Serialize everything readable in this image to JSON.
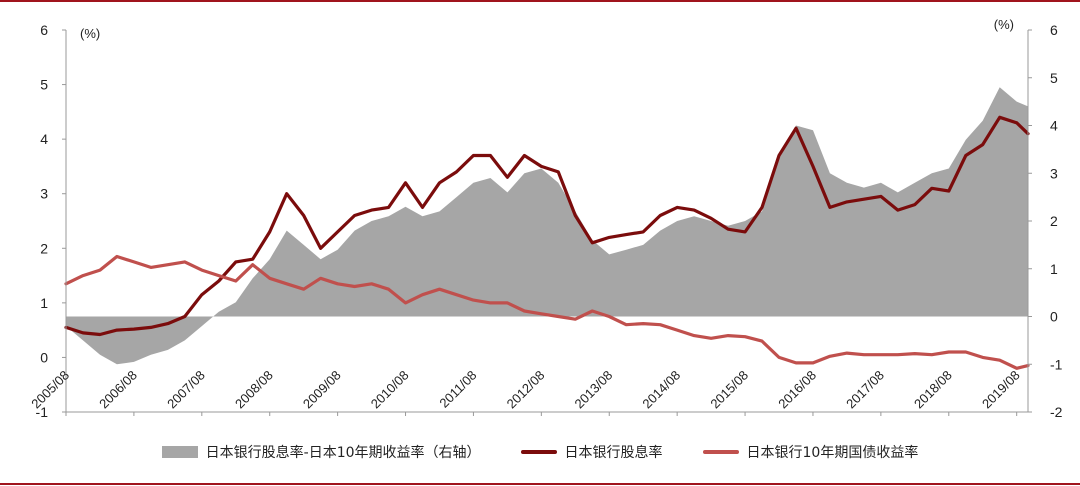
{
  "chart_data": {
    "type": "line",
    "left_axis": {
      "ticks": [
        "6",
        "5",
        "4",
        "3",
        "2",
        "1",
        "0",
        "-1"
      ],
      "range": [
        -1,
        6
      ],
      "unit": "(%)"
    },
    "right_axis": {
      "ticks": [
        "6",
        "5",
        "4",
        "3",
        "2",
        "1",
        "0",
        "-1",
        "-2"
      ],
      "range": [
        -2,
        6
      ],
      "unit": "(%)"
    },
    "x_ticks": [
      "2005/08",
      "2006/08",
      "2007/08",
      "2008/08",
      "2009/08",
      "2010/08",
      "2011/08",
      "2012/08",
      "2013/08",
      "2014/08",
      "2015/08",
      "2016/08",
      "2017/08",
      "2018/08",
      "2019/08"
    ],
    "x_range": [
      "2005/08",
      "2019/10"
    ],
    "series": [
      {
        "name": "日本银行股息率-日本10年期收益率（右轴）",
        "kind": "area",
        "axis": "right",
        "color": "#a6a6a6",
        "points": [
          [
            "2005/08",
            -0.2
          ],
          [
            "2005/11",
            -0.5
          ],
          [
            "2006/02",
            -0.8
          ],
          [
            "2006/05",
            -1.0
          ],
          [
            "2006/08",
            -0.95
          ],
          [
            "2006/11",
            -0.8
          ],
          [
            "2007/02",
            -0.7
          ],
          [
            "2007/05",
            -0.5
          ],
          [
            "2007/08",
            -0.2
          ],
          [
            "2007/11",
            0.1
          ],
          [
            "2008/02",
            0.3
          ],
          [
            "2008/05",
            0.8
          ],
          [
            "2008/08",
            1.2
          ],
          [
            "2008/11",
            1.8
          ],
          [
            "2009/02",
            1.5
          ],
          [
            "2009/05",
            1.2
          ],
          [
            "2009/08",
            1.4
          ],
          [
            "2009/11",
            1.8
          ],
          [
            "2010/02",
            2.0
          ],
          [
            "2010/05",
            2.1
          ],
          [
            "2010/08",
            2.3
          ],
          [
            "2010/11",
            2.1
          ],
          [
            "2011/02",
            2.2
          ],
          [
            "2011/05",
            2.5
          ],
          [
            "2011/08",
            2.8
          ],
          [
            "2011/11",
            2.9
          ],
          [
            "2012/02",
            2.6
          ],
          [
            "2012/05",
            3.0
          ],
          [
            "2012/08",
            3.1
          ],
          [
            "2012/11",
            2.8
          ],
          [
            "2013/02",
            2.2
          ],
          [
            "2013/05",
            1.6
          ],
          [
            "2013/08",
            1.3
          ],
          [
            "2013/11",
            1.4
          ],
          [
            "2014/02",
            1.5
          ],
          [
            "2014/05",
            1.8
          ],
          [
            "2014/08",
            2.0
          ],
          [
            "2014/11",
            2.1
          ],
          [
            "2015/02",
            2.0
          ],
          [
            "2015/05",
            1.9
          ],
          [
            "2015/08",
            2.0
          ],
          [
            "2015/11",
            2.2
          ],
          [
            "2016/02",
            3.3
          ],
          [
            "2016/05",
            4.0
          ],
          [
            "2016/08",
            3.9
          ],
          [
            "2016/11",
            3.0
          ],
          [
            "2017/02",
            2.8
          ],
          [
            "2017/05",
            2.7
          ],
          [
            "2017/08",
            2.8
          ],
          [
            "2017/11",
            2.6
          ],
          [
            "2018/02",
            2.8
          ],
          [
            "2018/05",
            3.0
          ],
          [
            "2018/08",
            3.1
          ],
          [
            "2018/11",
            3.7
          ],
          [
            "2019/02",
            4.1
          ],
          [
            "2019/05",
            4.8
          ],
          [
            "2019/08",
            4.5
          ],
          [
            "2019/10",
            4.4
          ]
        ]
      },
      {
        "name": "日本银行股息率",
        "kind": "line",
        "axis": "left",
        "color": "#7b0c0c",
        "points": [
          [
            "2005/08",
            0.55
          ],
          [
            "2005/11",
            0.45
          ],
          [
            "2006/02",
            0.42
          ],
          [
            "2006/05",
            0.5
          ],
          [
            "2006/08",
            0.52
          ],
          [
            "2006/11",
            0.55
          ],
          [
            "2007/02",
            0.62
          ],
          [
            "2007/05",
            0.75
          ],
          [
            "2007/08",
            1.15
          ],
          [
            "2007/11",
            1.4
          ],
          [
            "2008/02",
            1.75
          ],
          [
            "2008/05",
            1.8
          ],
          [
            "2008/08",
            2.3
          ],
          [
            "2008/11",
            3.0
          ],
          [
            "2009/02",
            2.6
          ],
          [
            "2009/05",
            2.0
          ],
          [
            "2009/08",
            2.3
          ],
          [
            "2009/11",
            2.6
          ],
          [
            "2010/02",
            2.7
          ],
          [
            "2010/05",
            2.75
          ],
          [
            "2010/08",
            3.2
          ],
          [
            "2010/11",
            2.75
          ],
          [
            "2011/02",
            3.2
          ],
          [
            "2011/05",
            3.4
          ],
          [
            "2011/08",
            3.7
          ],
          [
            "2011/11",
            3.7
          ],
          [
            "2012/02",
            3.3
          ],
          [
            "2012/05",
            3.7
          ],
          [
            "2012/08",
            3.5
          ],
          [
            "2012/11",
            3.4
          ],
          [
            "2013/02",
            2.6
          ],
          [
            "2013/05",
            2.1
          ],
          [
            "2013/08",
            2.2
          ],
          [
            "2013/11",
            2.25
          ],
          [
            "2014/02",
            2.3
          ],
          [
            "2014/05",
            2.6
          ],
          [
            "2014/08",
            2.75
          ],
          [
            "2014/11",
            2.7
          ],
          [
            "2015/02",
            2.55
          ],
          [
            "2015/05",
            2.35
          ],
          [
            "2015/08",
            2.3
          ],
          [
            "2015/11",
            2.75
          ],
          [
            "2016/02",
            3.7
          ],
          [
            "2016/05",
            4.2
          ],
          [
            "2016/08",
            3.5
          ],
          [
            "2016/11",
            2.75
          ],
          [
            "2017/02",
            2.85
          ],
          [
            "2017/05",
            2.9
          ],
          [
            "2017/08",
            2.95
          ],
          [
            "2017/11",
            2.7
          ],
          [
            "2018/02",
            2.8
          ],
          [
            "2018/05",
            3.1
          ],
          [
            "2018/08",
            3.05
          ],
          [
            "2018/11",
            3.7
          ],
          [
            "2019/02",
            3.9
          ],
          [
            "2019/05",
            4.4
          ],
          [
            "2019/08",
            4.3
          ],
          [
            "2019/10",
            4.1
          ]
        ]
      },
      {
        "name": "日本银行10年期国债收益率",
        "kind": "line",
        "axis": "left",
        "color": "#c0504d",
        "points": [
          [
            "2005/08",
            1.35
          ],
          [
            "2005/11",
            1.5
          ],
          [
            "2006/02",
            1.6
          ],
          [
            "2006/05",
            1.85
          ],
          [
            "2006/08",
            1.75
          ],
          [
            "2006/11",
            1.65
          ],
          [
            "2007/02",
            1.7
          ],
          [
            "2007/05",
            1.75
          ],
          [
            "2007/08",
            1.6
          ],
          [
            "2007/11",
            1.5
          ],
          [
            "2008/02",
            1.4
          ],
          [
            "2008/05",
            1.7
          ],
          [
            "2008/08",
            1.45
          ],
          [
            "2008/11",
            1.35
          ],
          [
            "2009/02",
            1.25
          ],
          [
            "2009/05",
            1.45
          ],
          [
            "2009/08",
            1.35
          ],
          [
            "2009/11",
            1.3
          ],
          [
            "2010/02",
            1.35
          ],
          [
            "2010/05",
            1.25
          ],
          [
            "2010/08",
            1.0
          ],
          [
            "2010/11",
            1.15
          ],
          [
            "2011/02",
            1.25
          ],
          [
            "2011/05",
            1.15
          ],
          [
            "2011/08",
            1.05
          ],
          [
            "2011/11",
            1.0
          ],
          [
            "2012/02",
            1.0
          ],
          [
            "2012/05",
            0.85
          ],
          [
            "2012/08",
            0.8
          ],
          [
            "2012/11",
            0.75
          ],
          [
            "2013/02",
            0.7
          ],
          [
            "2013/05",
            0.85
          ],
          [
            "2013/08",
            0.75
          ],
          [
            "2013/11",
            0.6
          ],
          [
            "2014/02",
            0.62
          ],
          [
            "2014/05",
            0.6
          ],
          [
            "2014/08",
            0.5
          ],
          [
            "2014/11",
            0.4
          ],
          [
            "2015/02",
            0.35
          ],
          [
            "2015/05",
            0.4
          ],
          [
            "2015/08",
            0.38
          ],
          [
            "2015/11",
            0.3
          ],
          [
            "2016/02",
            0.0
          ],
          [
            "2016/05",
            -0.1
          ],
          [
            "2016/08",
            -0.1
          ],
          [
            "2016/11",
            0.02
          ],
          [
            "2017/02",
            0.08
          ],
          [
            "2017/05",
            0.05
          ],
          [
            "2017/08",
            0.05
          ],
          [
            "2017/11",
            0.05
          ],
          [
            "2018/02",
            0.07
          ],
          [
            "2018/05",
            0.05
          ],
          [
            "2018/08",
            0.1
          ],
          [
            "2018/11",
            0.1
          ],
          [
            "2019/02",
            0.0
          ],
          [
            "2019/05",
            -0.05
          ],
          [
            "2019/08",
            -0.2
          ],
          [
            "2019/10",
            -0.15
          ]
        ]
      }
    ],
    "legend": {
      "placement": "bottom",
      "items": [
        "日本银行股息率-日本10年期收益率（右轴）",
        "日本银行股息率",
        "日本银行10年期国债收益率"
      ]
    }
  }
}
